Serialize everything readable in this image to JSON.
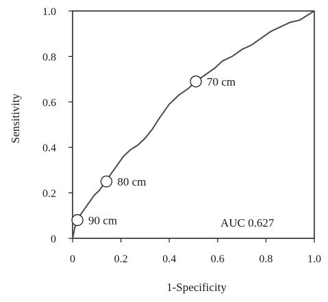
{
  "chart_data": {
    "type": "line",
    "xlabel": "1-Specificity",
    "ylabel": "Sensitivity",
    "xlim": [
      0,
      1
    ],
    "ylim": [
      0,
      1
    ],
    "x_ticks": [
      "0",
      "0.2",
      "0.4",
      "0.6",
      "0.8",
      "1.0"
    ],
    "y_ticks": [
      "0",
      "0.2",
      "0.4",
      "0.6",
      "0.8",
      "1.0"
    ],
    "grid": false,
    "series": [
      {
        "x": [
          0,
          0.01,
          0.02,
          0.03,
          0.05,
          0.07,
          0.09,
          0.11,
          0.13,
          0.15,
          0.17,
          0.19,
          0.21,
          0.24,
          0.27,
          0.3,
          0.33,
          0.36,
          0.4,
          0.44,
          0.48,
          0.51,
          0.55,
          0.59,
          0.62,
          0.66,
          0.7,
          0.74,
          0.78,
          0.82,
          0.86,
          0.9,
          0.94,
          0.97,
          1.0
        ],
        "y": [
          0,
          0.05,
          0.08,
          0.1,
          0.13,
          0.16,
          0.19,
          0.21,
          0.24,
          0.27,
          0.3,
          0.33,
          0.36,
          0.39,
          0.41,
          0.44,
          0.48,
          0.53,
          0.59,
          0.63,
          0.66,
          0.69,
          0.72,
          0.75,
          0.78,
          0.8,
          0.83,
          0.85,
          0.88,
          0.91,
          0.93,
          0.95,
          0.96,
          0.98,
          1.0
        ]
      }
    ],
    "points": [
      {
        "label": "90 cm",
        "x": 0.02,
        "y": 0.08
      },
      {
        "label": "80  cm",
        "x": 0.14,
        "y": 0.25
      },
      {
        "label": "70 cm",
        "x": 0.51,
        "y": 0.69
      }
    ],
    "annotation": "AUC  0.627"
  }
}
